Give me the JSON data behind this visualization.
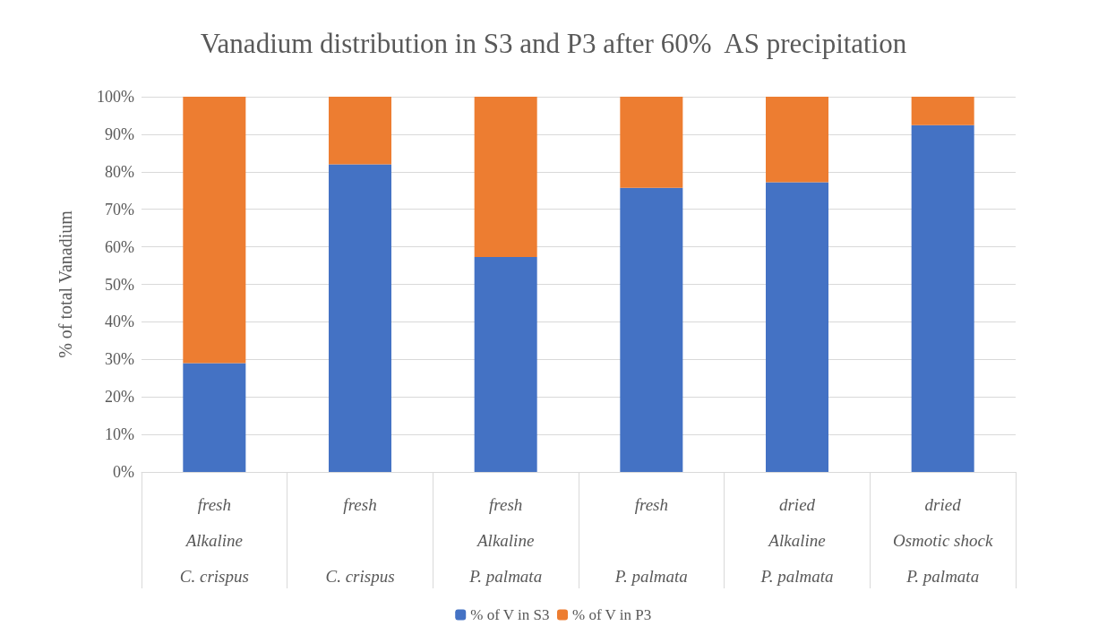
{
  "chart_data": {
    "type": "bar",
    "title": "Vanadium distribution in S3 and P3 after 60%  AS precipitation",
    "ylabel": "% of total Vanadium",
    "categories": [
      "fresh\nAlkaline\nC. crispus",
      "fresh\n\nC. crispus",
      "fresh\nAlkaline\nP. palmata",
      "fresh\n\nP. palmata",
      "dried\nAlkaline\nP. palmata",
      "dried\nOsmotic shock\nP. palmata"
    ],
    "series": [
      {
        "name": "% of V in S3",
        "color": "#4472c4",
        "values": [
          29,
          82,
          57.3,
          75.7,
          77.2,
          92.4
        ]
      },
      {
        "name": "% of V in P3",
        "color": "#ed7d31",
        "values": [
          71,
          18,
          42.7,
          24.3,
          22.8,
          7.6
        ]
      }
    ],
    "stacked": true,
    "ylim": [
      0,
      100
    ],
    "yticks": [
      {
        "value": 0,
        "label": "0%"
      },
      {
        "value": 10,
        "label": "10%"
      },
      {
        "value": 20,
        "label": "20%"
      },
      {
        "value": 30,
        "label": "30%"
      },
      {
        "value": 40,
        "label": "40%"
      },
      {
        "value": 50,
        "label": "50%"
      },
      {
        "value": 60,
        "label": "60%"
      },
      {
        "value": 70,
        "label": "70%"
      },
      {
        "value": 80,
        "label": "80%"
      },
      {
        "value": 90,
        "label": "90%"
      },
      {
        "value": 100,
        "label": "100%"
      }
    ],
    "grid": "y",
    "legend": "bottom"
  }
}
